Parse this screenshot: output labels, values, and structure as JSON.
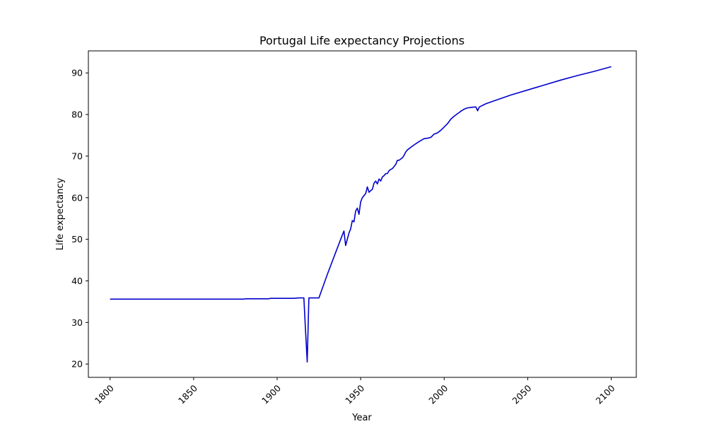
{
  "chart_data": {
    "type": "line",
    "title": "Portugal Life expectancy Projections",
    "xlabel": "Year",
    "ylabel": "Life expectancy",
    "xlim": [
      1787,
      2115
    ],
    "ylim": [
      16.8,
      95.3
    ],
    "xticks": [
      1800,
      1850,
      1900,
      1950,
      2000,
      2050,
      2100
    ],
    "xtick_rotation": 45,
    "yticks": [
      20,
      30,
      40,
      50,
      60,
      70,
      80,
      90
    ],
    "grid": false,
    "legend": "none",
    "line_color": "#0000cd",
    "series": [
      {
        "points": [
          [
            1800,
            35.6
          ],
          [
            1850,
            35.6
          ],
          [
            1880,
            35.6
          ],
          [
            1881,
            35.7
          ],
          [
            1895,
            35.7
          ],
          [
            1896,
            35.8
          ],
          [
            1910,
            35.8
          ],
          [
            1913,
            35.9
          ],
          [
            1916,
            35.9
          ],
          [
            1917,
            28.0
          ],
          [
            1918,
            20.5
          ],
          [
            1919,
            35.9
          ],
          [
            1925,
            35.9
          ],
          [
            1930,
            41.5
          ],
          [
            1935,
            46.8
          ],
          [
            1939,
            51.0
          ],
          [
            1940,
            52.0
          ],
          [
            1941,
            48.5
          ],
          [
            1942,
            50.0
          ],
          [
            1943,
            51.5
          ],
          [
            1944,
            52.5
          ],
          [
            1945,
            54.5
          ],
          [
            1946,
            54.2
          ],
          [
            1947,
            56.8
          ],
          [
            1948,
            57.5
          ],
          [
            1949,
            56.0
          ],
          [
            1950,
            59.0
          ],
          [
            1951,
            60.0
          ],
          [
            1952,
            60.5
          ],
          [
            1953,
            61.0
          ],
          [
            1954,
            62.6
          ],
          [
            1955,
            61.3
          ],
          [
            1956,
            61.7
          ],
          [
            1957,
            62.0
          ],
          [
            1958,
            63.5
          ],
          [
            1959,
            64.0
          ],
          [
            1960,
            63.3
          ],
          [
            1961,
            64.5
          ],
          [
            1962,
            64.0
          ],
          [
            1963,
            65.0
          ],
          [
            1964,
            65.3
          ],
          [
            1965,
            65.8
          ],
          [
            1966,
            65.8
          ],
          [
            1967,
            66.5
          ],
          [
            1968,
            66.8
          ],
          [
            1969,
            67.0
          ],
          [
            1970,
            67.5
          ],
          [
            1971,
            68.0
          ],
          [
            1972,
            69.0
          ],
          [
            1973,
            69.0
          ],
          [
            1974,
            69.3
          ],
          [
            1975,
            69.6
          ],
          [
            1976,
            70.2
          ],
          [
            1977,
            71.0
          ],
          [
            1978,
            71.5
          ],
          [
            1979,
            71.8
          ],
          [
            1980,
            72.1
          ],
          [
            1982,
            72.7
          ],
          [
            1985,
            73.5
          ],
          [
            1988,
            74.2
          ],
          [
            1990,
            74.3
          ],
          [
            1992,
            74.5
          ],
          [
            1994,
            75.3
          ],
          [
            1996,
            75.6
          ],
          [
            1998,
            76.2
          ],
          [
            2000,
            77.0
          ],
          [
            2002,
            77.8
          ],
          [
            2004,
            78.9
          ],
          [
            2006,
            79.6
          ],
          [
            2008,
            80.2
          ],
          [
            2010,
            80.8
          ],
          [
            2012,
            81.3
          ],
          [
            2014,
            81.6
          ],
          [
            2016,
            81.7
          ],
          [
            2018,
            81.8
          ],
          [
            2019,
            81.8
          ],
          [
            2020,
            80.9
          ],
          [
            2021,
            81.8
          ],
          [
            2025,
            82.6
          ],
          [
            2030,
            83.3
          ],
          [
            2040,
            84.7
          ],
          [
            2050,
            85.9
          ],
          [
            2060,
            87.1
          ],
          [
            2070,
            88.3
          ],
          [
            2080,
            89.4
          ],
          [
            2090,
            90.4
          ],
          [
            2100,
            91.5
          ]
        ]
      }
    ]
  }
}
